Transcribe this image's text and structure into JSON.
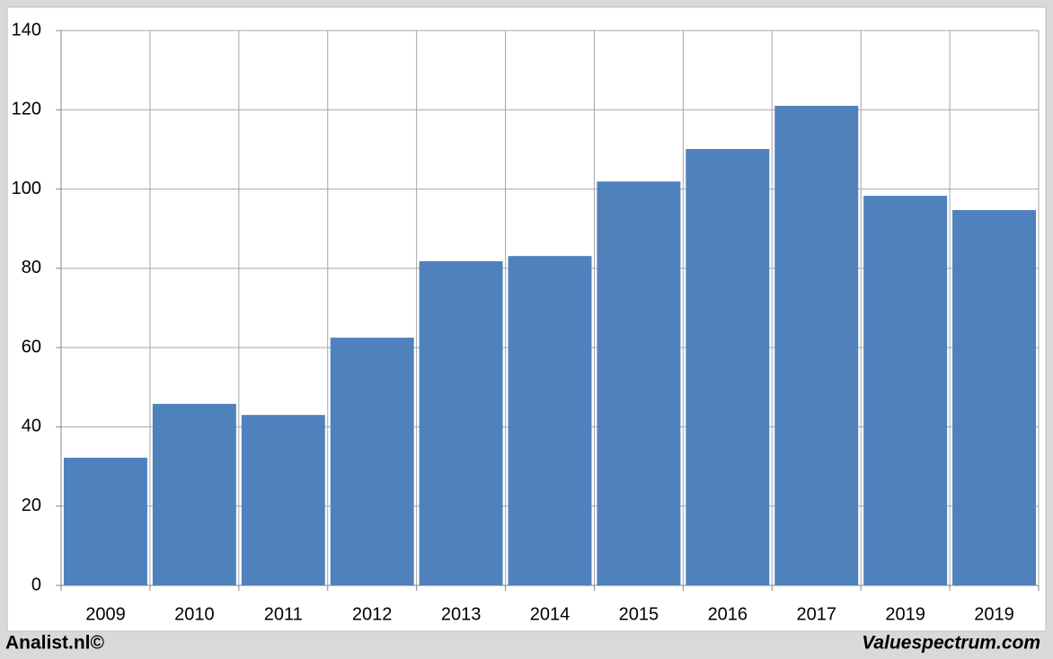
{
  "chart_data": {
    "type": "bar",
    "categories": [
      "2009",
      "2010",
      "2011",
      "2012",
      "2013",
      "2014",
      "2015",
      "2016",
      "2017",
      "2019",
      "2019"
    ],
    "values": [
      32.2,
      45.8,
      43.0,
      62.5,
      81.8,
      83.1,
      101.9,
      110.1,
      121.0,
      98.3,
      94.7
    ],
    "color": "#4f81bd",
    "ylim": [
      0,
      140
    ],
    "yticks": [
      0,
      20,
      40,
      60,
      80,
      100,
      120,
      140
    ],
    "grid": true
  },
  "footer": {
    "left": "Analist.nl©",
    "right": "Valuespectrum.com"
  }
}
